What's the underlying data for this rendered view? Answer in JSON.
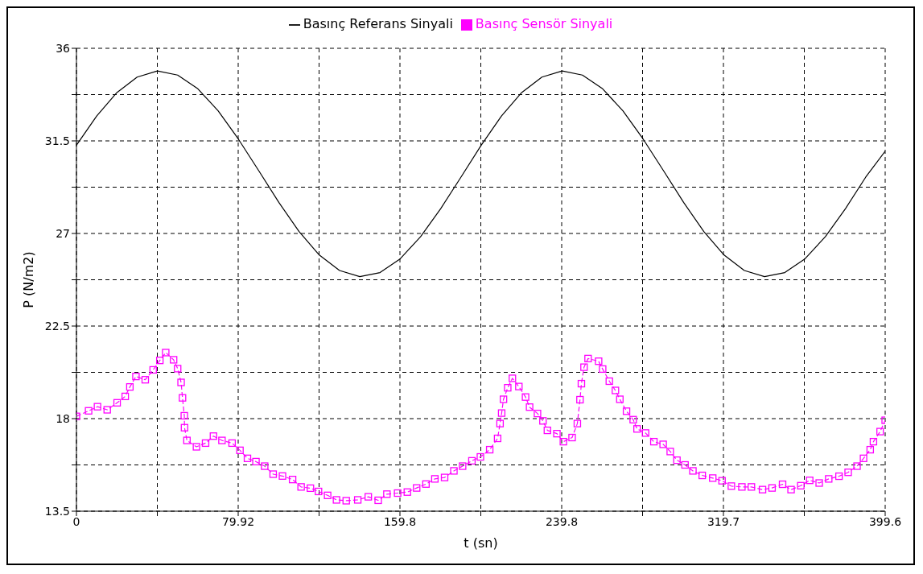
{
  "chart_data": {
    "type": "line",
    "xlabel": "t (sn)",
    "ylabel": "P (N/m2)",
    "xlim": [
      0,
      399.6
    ],
    "ylim": [
      13.5,
      36
    ],
    "xticks": [
      0,
      {
        "value": 39.96,
        "label": null
      },
      {
        "value": 79.92,
        "label": "79.92"
      },
      {
        "value": 119.88,
        "label": null
      },
      {
        "value": 159.84,
        "label": "159.8"
      },
      {
        "value": 199.8,
        "label": null
      },
      {
        "value": 239.76,
        "label": "239.8"
      },
      {
        "value": 279.72,
        "label": null
      },
      {
        "value": 319.68,
        "label": "319.7"
      },
      {
        "value": 359.64,
        "label": null
      },
      399.6
    ],
    "yticks": [
      13.5,
      {
        "value": 15.75,
        "label": null
      },
      18,
      {
        "value": 20.25,
        "label": null
      },
      22.5,
      {
        "value": 24.75,
        "label": null
      },
      27,
      {
        "value": 29.25,
        "label": null
      },
      31.5,
      {
        "value": 33.75,
        "label": null
      },
      36
    ],
    "grid": true,
    "legend": "top",
    "series": [
      {
        "name": "Basınç Referans Sinyali",
        "color": "#000000",
        "marker": "none",
        "line_style": "solid",
        "x": [
          0,
          10,
          20,
          30,
          40,
          50,
          60,
          70,
          80,
          90,
          100,
          110,
          120,
          130,
          140,
          150,
          160,
          170,
          180,
          190,
          200,
          210,
          220,
          230,
          240,
          250,
          260,
          270,
          280,
          290,
          300,
          310,
          320,
          330,
          340,
          350,
          360,
          370,
          380,
          390,
          399.6
        ],
        "values": [
          31.29,
          32.71,
          33.85,
          34.6,
          34.9,
          34.7,
          34.03,
          32.96,
          31.59,
          30.06,
          28.51,
          27.09,
          25.95,
          25.2,
          24.9,
          25.1,
          25.77,
          26.84,
          28.21,
          29.74,
          31.29,
          32.71,
          33.85,
          34.6,
          34.9,
          34.7,
          34.03,
          32.96,
          31.59,
          30.06,
          28.51,
          27.09,
          25.95,
          25.2,
          24.9,
          25.1,
          25.77,
          26.84,
          28.21,
          29.74,
          31.0
        ]
      },
      {
        "name": "Basınç Sensör Sinyali",
        "color": "#ff00ff",
        "marker": "square",
        "line_style": "dashed",
        "x": [
          0,
          6,
          10.4,
          15.2,
          20.1,
          24.1,
          26.4,
          29.4,
          34,
          37.9,
          41.2,
          44.1,
          48,
          50,
          51.7,
          52.4,
          53.3,
          53.4,
          54.6,
          59.3,
          63.8,
          67.7,
          71.9,
          76.9,
          80.8,
          84.5,
          88.7,
          93,
          97.2,
          101.8,
          106.8,
          111,
          115.6,
          119.6,
          124.1,
          128.5,
          133.3,
          139,
          144.2,
          149.1,
          153.4,
          158.7,
          163.5,
          168.1,
          172.7,
          177.1,
          181.9,
          186.5,
          190.8,
          195.4,
          199.6,
          204.2,
          208.1,
          209.3,
          210.1,
          211,
          213.1,
          215.4,
          218.6,
          221.9,
          223.9,
          227.8,
          230.5,
          232.7,
          237.4,
          240.6,
          244.9,
          247.5,
          248.8,
          249.5,
          250.8,
          252.8,
          258,
          260,
          263.3,
          266.3,
          268.5,
          271.8,
          275.1,
          277,
          281.2,
          285.3,
          289.9,
          293.4,
          296.7,
          300.7,
          304.6,
          309.2,
          314.4,
          319,
          323.6,
          328.8,
          333.5,
          339,
          343.7,
          348.9,
          353.1,
          357.9,
          362.3,
          367,
          371.7,
          376.8,
          381.3,
          385.7,
          388.9,
          392.2,
          393.8,
          397.1,
          399.6
        ],
        "values": [
          18.11,
          18.38,
          18.58,
          18.43,
          18.77,
          19.08,
          19.54,
          20.05,
          19.89,
          20.37,
          20.83,
          21.21,
          20.86,
          20.43,
          19.76,
          19.01,
          18.14,
          17.56,
          16.94,
          16.63,
          16.81,
          17.15,
          16.94,
          16.81,
          16.46,
          16.07,
          15.91,
          15.69,
          15.3,
          15.21,
          15.04,
          14.68,
          14.62,
          14.46,
          14.27,
          14.05,
          14.01,
          14.05,
          14.2,
          14.03,
          14.33,
          14.38,
          14.43,
          14.63,
          14.82,
          15.07,
          15.14,
          15.46,
          15.69,
          15.95,
          16.14,
          16.49,
          17.04,
          17.76,
          18.27,
          18.94,
          19.5,
          19.96,
          19.56,
          19.05,
          18.56,
          18.25,
          17.89,
          17.43,
          17.27,
          16.88,
          17.08,
          17.76,
          18.92,
          19.7,
          20.5,
          20.92,
          20.79,
          20.41,
          19.82,
          19.37,
          18.94,
          18.36,
          17.95,
          17.5,
          17.3,
          16.88,
          16.75,
          16.4,
          15.98,
          15.75,
          15.46,
          15.24,
          15.11,
          14.98,
          14.72,
          14.68,
          14.68,
          14.55,
          14.63,
          14.81,
          14.55,
          14.74,
          15.0,
          14.87,
          15.07,
          15.2,
          15.39,
          15.69,
          16.07,
          16.49,
          16.88,
          17.37,
          17.92
        ]
      }
    ]
  }
}
